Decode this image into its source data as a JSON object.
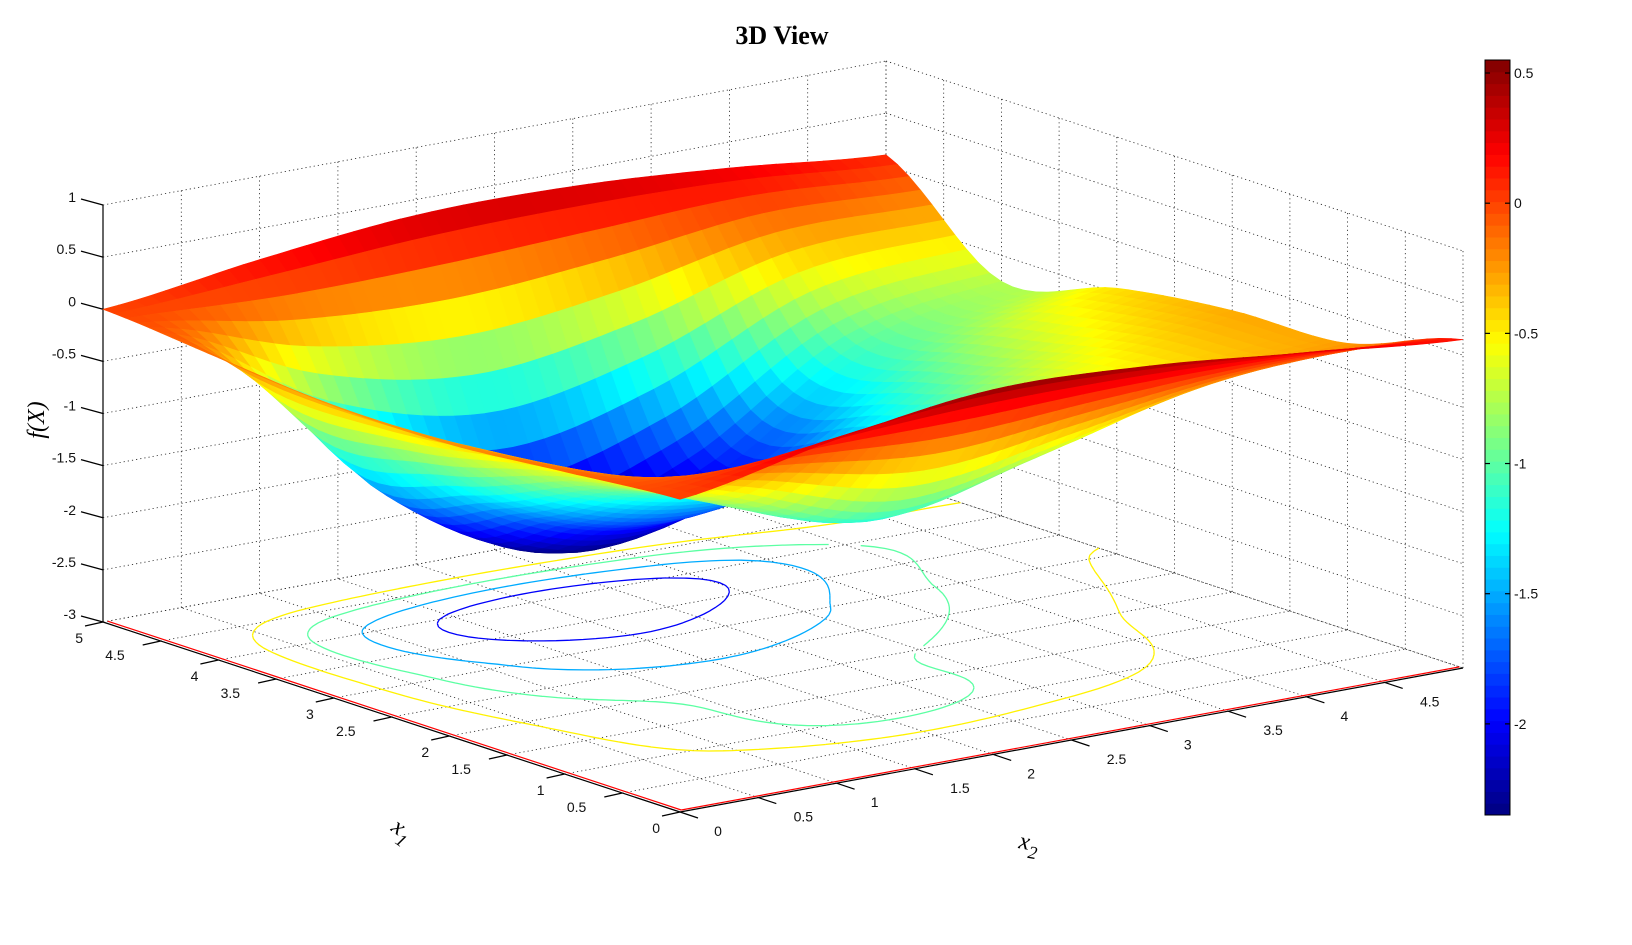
{
  "chart_data": {
    "type": "surface",
    "title": "3D View",
    "xlabel": "x",
    "xlabel_sub": "1",
    "ylabel": "x",
    "ylabel_sub": "2",
    "zlabel": "f(X)",
    "x1": [
      0,
      1,
      2,
      3,
      4,
      5
    ],
    "x2": [
      0,
      1,
      2,
      3,
      4,
      5
    ],
    "z": [
      [
        0.0,
        0.3,
        0.5,
        0.45,
        0.3,
        0.15
      ],
      [
        -0.1,
        -0.6,
        -1.1,
        -0.8,
        -0.4,
        -0.25
      ],
      [
        -0.2,
        -0.9,
        -1.2,
        -1.0,
        -0.6,
        -0.3
      ],
      [
        -0.2,
        -1.4,
        -1.9,
        -1.6,
        -0.9,
        -0.45
      ],
      [
        -0.1,
        -1.6,
        -2.3,
        -1.9,
        -1.0,
        -0.75
      ],
      [
        0.0,
        0.2,
        0.35,
        0.35,
        0.25,
        0.1
      ]
    ],
    "xlim": [
      0,
      5
    ],
    "ylim": [
      0,
      5
    ],
    "zlim": [
      -3,
      1
    ],
    "clim": [
      -2.35,
      0.55
    ],
    "colormap": "jet",
    "x1_ticks": [
      "0",
      "0.5",
      "1",
      "1.5",
      "2",
      "2.5",
      "3",
      "3.5",
      "4",
      "4.5",
      "5"
    ],
    "x2_ticks": [
      "0",
      "0.5",
      "1",
      "1.5",
      "2",
      "2.5",
      "3",
      "3.5",
      "4",
      "4.5"
    ],
    "z_ticks": [
      "-3",
      "-2.5",
      "-2",
      "-1.5",
      "-1",
      "-0.5",
      "0",
      "0.5",
      "1"
    ],
    "colorbar_ticks": [
      "0.5",
      "0",
      "-0.5",
      "-1",
      "-1.5",
      "-2"
    ],
    "contour_levels": [
      -2,
      -1.5,
      -1,
      -0.5
    ],
    "grid": true
  }
}
